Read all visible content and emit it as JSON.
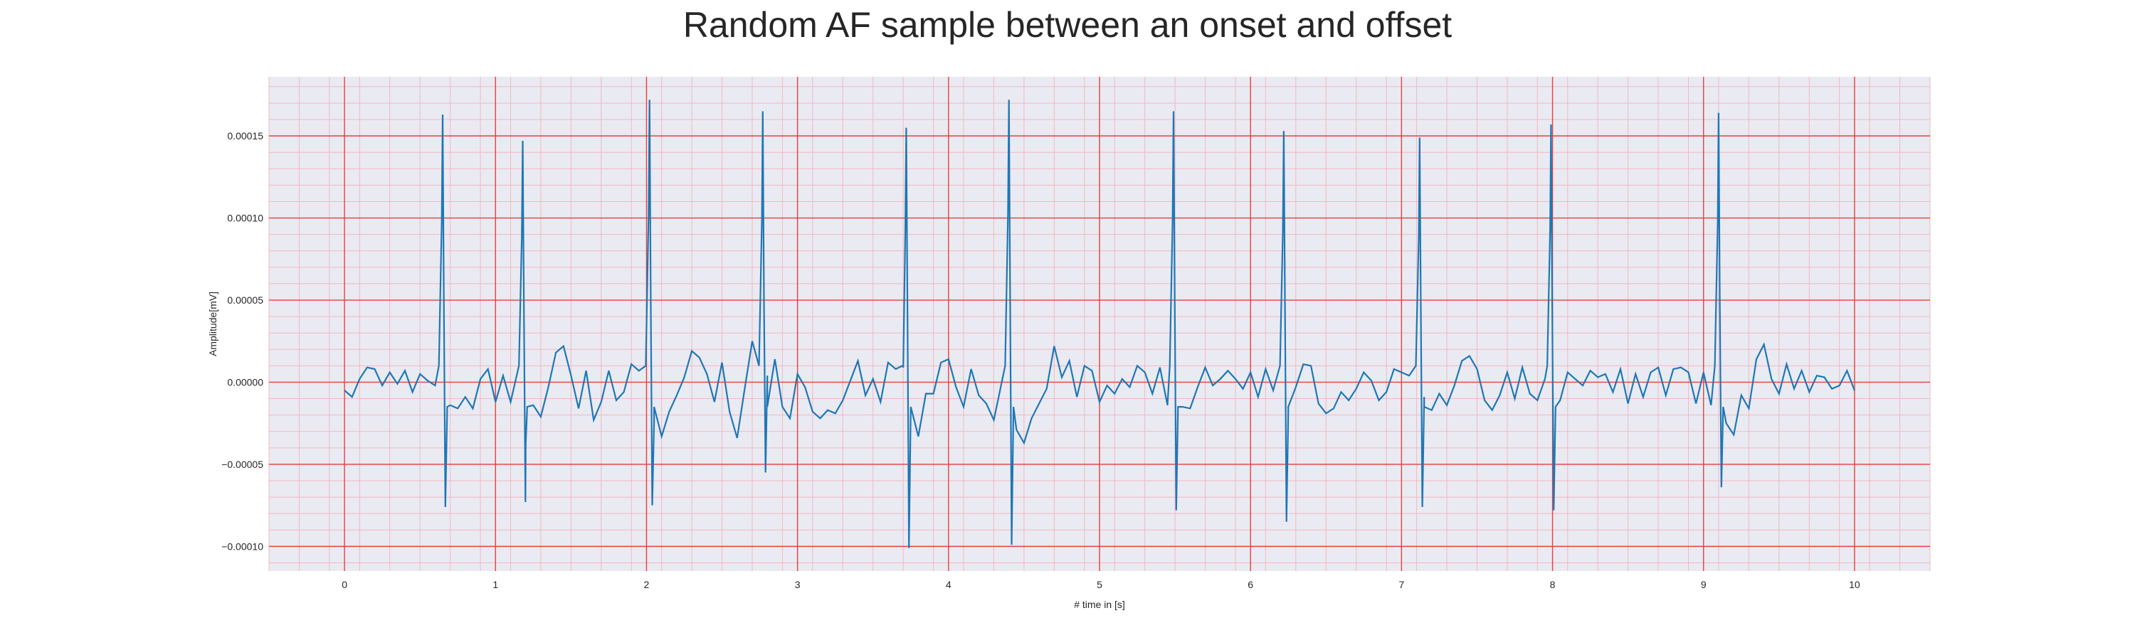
{
  "chart_data": {
    "type": "line",
    "title": "Random AF sample between an onset and offset",
    "xlabel": "# time in [s]",
    "ylabel": "Amplitude[mV]",
    "xlim": [
      -0.5,
      10.5
    ],
    "ylim": [
      -0.000115,
      0.000186
    ],
    "x_ticks": [
      0,
      1,
      2,
      3,
      4,
      5,
      6,
      7,
      8,
      9,
      10
    ],
    "x_tick_labels": [
      "0",
      "1",
      "2",
      "3",
      "4",
      "5",
      "6",
      "7",
      "8",
      "9",
      "10"
    ],
    "y_ticks": [
      -0.0001,
      -5e-05,
      0.0,
      5e-05,
      0.0001,
      0.00015
    ],
    "y_tick_labels": [
      "−0.00010",
      "−0.00005",
      "0.00000",
      "0.00005",
      "0.00010",
      "0.00015"
    ],
    "grid": true,
    "grid_color_major": "#e8403a",
    "grid_color_minor": "#f2b8c0",
    "background_color": "#eaeaf2",
    "line_color": "#1f77b4",
    "series": [
      {
        "x_start": 0,
        "x_end": 10,
        "baseline_points": [
          [
            0.0,
            -5e-06
          ],
          [
            0.05,
            -9e-06
          ],
          [
            0.1,
            2e-06
          ],
          [
            0.15,
            9e-06
          ],
          [
            0.2,
            8e-06
          ],
          [
            0.25,
            -2e-06
          ],
          [
            0.3,
            6e-06
          ],
          [
            0.35,
            -1e-06
          ],
          [
            0.4,
            7e-06
          ],
          [
            0.45,
            -6e-06
          ],
          [
            0.5,
            5e-06
          ],
          [
            0.55,
            1e-06
          ],
          [
            0.6,
            -2e-06
          ],
          [
            0.7,
            -1.4e-05
          ],
          [
            0.75,
            -1.6e-05
          ],
          [
            0.8,
            -9e-06
          ],
          [
            0.85,
            -1.6e-05
          ],
          [
            0.9,
            2e-06
          ],
          [
            0.95,
            8e-06
          ],
          [
            1.0,
            -1.2e-05
          ],
          [
            1.05,
            4e-06
          ],
          [
            1.1,
            -1.2e-05
          ],
          [
            1.2,
            -3.8e-05
          ],
          [
            1.25,
            -1.4e-05
          ],
          [
            1.3,
            -2.1e-05
          ],
          [
            1.35,
            -3e-06
          ],
          [
            1.4,
            1.8e-05
          ],
          [
            1.45,
            2.2e-05
          ],
          [
            1.5,
            4e-06
          ],
          [
            1.55,
            -1.6e-05
          ],
          [
            1.6,
            7e-06
          ],
          [
            1.65,
            -2.3e-05
          ],
          [
            1.7,
            -1.2e-05
          ],
          [
            1.75,
            7e-06
          ],
          [
            1.8,
            -1.1e-05
          ],
          [
            1.85,
            -6e-06
          ],
          [
            1.9,
            1.1e-05
          ],
          [
            1.95,
            7e-06
          ],
          [
            2.05,
            -2.4e-05
          ],
          [
            2.1,
            -3.3e-05
          ],
          [
            2.15,
            -1.8e-05
          ],
          [
            2.2,
            -8e-06
          ],
          [
            2.25,
            3e-06
          ],
          [
            2.3,
            1.9e-05
          ],
          [
            2.35,
            1.5e-05
          ],
          [
            2.4,
            5e-06
          ],
          [
            2.45,
            -1.2e-05
          ],
          [
            2.5,
            1.2e-05
          ],
          [
            2.55,
            -1.8e-05
          ],
          [
            2.6,
            -3.4e-05
          ],
          [
            2.65,
            -4e-06
          ],
          [
            2.7,
            2.5e-05
          ],
          [
            2.8,
            4e-06
          ],
          [
            2.85,
            1.4e-05
          ],
          [
            2.9,
            -1.5e-05
          ],
          [
            2.95,
            -2.2e-05
          ],
          [
            3.0,
            5e-06
          ],
          [
            3.05,
            -3e-06
          ],
          [
            3.1,
            -1.8e-05
          ],
          [
            3.15,
            -2.2e-05
          ],
          [
            3.2,
            -1.7e-05
          ],
          [
            3.25,
            -1.9e-05
          ],
          [
            3.3,
            -1.1e-05
          ],
          [
            3.35,
            1e-06
          ],
          [
            3.4,
            1.3e-05
          ],
          [
            3.45,
            -8e-06
          ],
          [
            3.5,
            2e-06
          ],
          [
            3.55,
            -1.2e-05
          ],
          [
            3.6,
            1.2e-05
          ],
          [
            3.65,
            8e-06
          ],
          [
            3.7,
            9e-06
          ],
          [
            3.8,
            -3.3e-05
          ],
          [
            3.85,
            -7e-06
          ],
          [
            3.9,
            -7e-06
          ],
          [
            3.95,
            1.2e-05
          ],
          [
            4.0,
            1.4e-05
          ],
          [
            4.05,
            -3e-06
          ],
          [
            4.1,
            -1.5e-05
          ],
          [
            4.15,
            8e-06
          ],
          [
            4.2,
            -8e-06
          ],
          [
            4.25,
            -1.3e-05
          ],
          [
            4.3,
            -2.3e-05
          ],
          [
            4.45,
            -2.9e-05
          ],
          [
            4.5,
            -3.7e-05
          ],
          [
            4.55,
            -2.2e-05
          ],
          [
            4.6,
            -1.3e-05
          ],
          [
            4.65,
            -4e-06
          ],
          [
            4.7,
            2.2e-05
          ],
          [
            4.75,
            3e-06
          ],
          [
            4.8,
            1.3e-05
          ],
          [
            4.85,
            -9e-06
          ],
          [
            4.9,
            1e-05
          ],
          [
            4.95,
            7e-06
          ],
          [
            5.0,
            -1.2e-05
          ],
          [
            5.05,
            -2e-06
          ],
          [
            5.1,
            -7e-06
          ],
          [
            5.15,
            2e-06
          ],
          [
            5.2,
            -3e-06
          ],
          [
            5.25,
            1e-05
          ],
          [
            5.3,
            6e-06
          ],
          [
            5.35,
            -7e-06
          ],
          [
            5.4,
            9e-06
          ],
          [
            5.45,
            -1.4e-05
          ],
          [
            5.55,
            -1.5e-05
          ],
          [
            5.6,
            -1.6e-05
          ],
          [
            5.65,
            -3e-06
          ],
          [
            5.7,
            9e-06
          ],
          [
            5.75,
            -2e-06
          ],
          [
            5.8,
            2e-06
          ],
          [
            5.85,
            7e-06
          ],
          [
            5.9,
            2e-06
          ],
          [
            5.95,
            -4e-06
          ],
          [
            6.0,
            6e-06
          ],
          [
            6.05,
            -9e-06
          ],
          [
            6.1,
            8e-06
          ],
          [
            6.15,
            -5e-06
          ],
          [
            6.25,
            -1.9e-05
          ],
          [
            6.3,
            -3e-06
          ],
          [
            6.35,
            1.1e-05
          ],
          [
            6.4,
            1e-05
          ],
          [
            6.45,
            -1.3e-05
          ],
          [
            6.5,
            -1.9e-05
          ],
          [
            6.55,
            -1.6e-05
          ],
          [
            6.6,
            -6e-06
          ],
          [
            6.65,
            -1.1e-05
          ],
          [
            6.7,
            -4e-06
          ],
          [
            6.75,
            6e-06
          ],
          [
            6.8,
            1e-06
          ],
          [
            6.85,
            -1.1e-05
          ],
          [
            6.9,
            -6e-06
          ],
          [
            6.95,
            8e-06
          ],
          [
            7.0,
            6e-06
          ],
          [
            7.05,
            4e-06
          ],
          [
            7.15,
            -9e-06
          ],
          [
            7.2,
            -1.7e-05
          ],
          [
            7.25,
            -7e-06
          ],
          [
            7.3,
            -1.4e-05
          ],
          [
            7.35,
            -2e-06
          ],
          [
            7.4,
            1.3e-05
          ],
          [
            7.45,
            1.6e-05
          ],
          [
            7.5,
            8e-06
          ],
          [
            7.55,
            -1.1e-05
          ],
          [
            7.6,
            -1.7e-05
          ],
          [
            7.65,
            -8e-06
          ],
          [
            7.7,
            6e-06
          ],
          [
            7.75,
            -1e-05
          ],
          [
            7.8,
            9e-06
          ],
          [
            7.85,
            -7e-06
          ],
          [
            7.9,
            -1.1e-05
          ],
          [
            7.95,
            2e-06
          ],
          [
            8.05,
            -1.1e-05
          ],
          [
            8.1,
            6e-06
          ],
          [
            8.15,
            2e-06
          ],
          [
            8.2,
            -2e-06
          ],
          [
            8.25,
            7e-06
          ],
          [
            8.3,
            3e-06
          ],
          [
            8.35,
            5e-06
          ],
          [
            8.4,
            -6e-06
          ],
          [
            8.45,
            8e-06
          ],
          [
            8.5,
            -1.3e-05
          ],
          [
            8.55,
            5e-06
          ],
          [
            8.6,
            -9e-06
          ],
          [
            8.65,
            6e-06
          ],
          [
            8.7,
            9e-06
          ],
          [
            8.75,
            -8e-06
          ],
          [
            8.8,
            8e-06
          ],
          [
            8.85,
            9e-06
          ],
          [
            8.9,
            6e-06
          ],
          [
            8.95,
            -1.3e-05
          ],
          [
            9.0,
            6e-06
          ],
          [
            9.05,
            -1.4e-05
          ],
          [
            9.15,
            -2.5e-05
          ],
          [
            9.2,
            -3.2e-05
          ],
          [
            9.25,
            -8e-06
          ],
          [
            9.3,
            -1.6e-05
          ],
          [
            9.35,
            1.4e-05
          ],
          [
            9.4,
            2.3e-05
          ],
          [
            9.45,
            2e-06
          ],
          [
            9.5,
            -7e-06
          ],
          [
            9.55,
            1.1e-05
          ],
          [
            9.6,
            -4e-06
          ],
          [
            9.65,
            7e-06
          ],
          [
            9.7,
            -6e-06
          ],
          [
            9.75,
            4e-06
          ],
          [
            9.8,
            3e-06
          ],
          [
            9.85,
            -4e-06
          ],
          [
            9.9,
            -2e-06
          ],
          [
            9.95,
            7e-06
          ],
          [
            10.0,
            -5e-06
          ]
        ],
        "qrs_complexes": [
          {
            "x": 0.65,
            "peak": 0.000163,
            "trough": -7.6e-05
          },
          {
            "x": 1.18,
            "peak": 0.000147,
            "trough": -7.3e-05
          },
          {
            "x": 2.02,
            "peak": 0.000172,
            "trough": -7.5e-05
          },
          {
            "x": 2.77,
            "peak": 0.000165,
            "trough": -5.5e-05
          },
          {
            "x": 3.72,
            "peak": 0.000155,
            "trough": -0.000101
          },
          {
            "x": 4.4,
            "peak": 0.000172,
            "trough": -9.9e-05
          },
          {
            "x": 5.49,
            "peak": 0.000165,
            "trough": -7.8e-05
          },
          {
            "x": 6.22,
            "peak": 0.000153,
            "trough": -8.5e-05
          },
          {
            "x": 7.12,
            "peak": 0.000149,
            "trough": -7.6e-05
          },
          {
            "x": 7.99,
            "peak": 0.000157,
            "trough": -7.8e-05
          },
          {
            "x": 9.1,
            "peak": 0.000164,
            "trough": -6.4e-05
          }
        ]
      }
    ]
  }
}
